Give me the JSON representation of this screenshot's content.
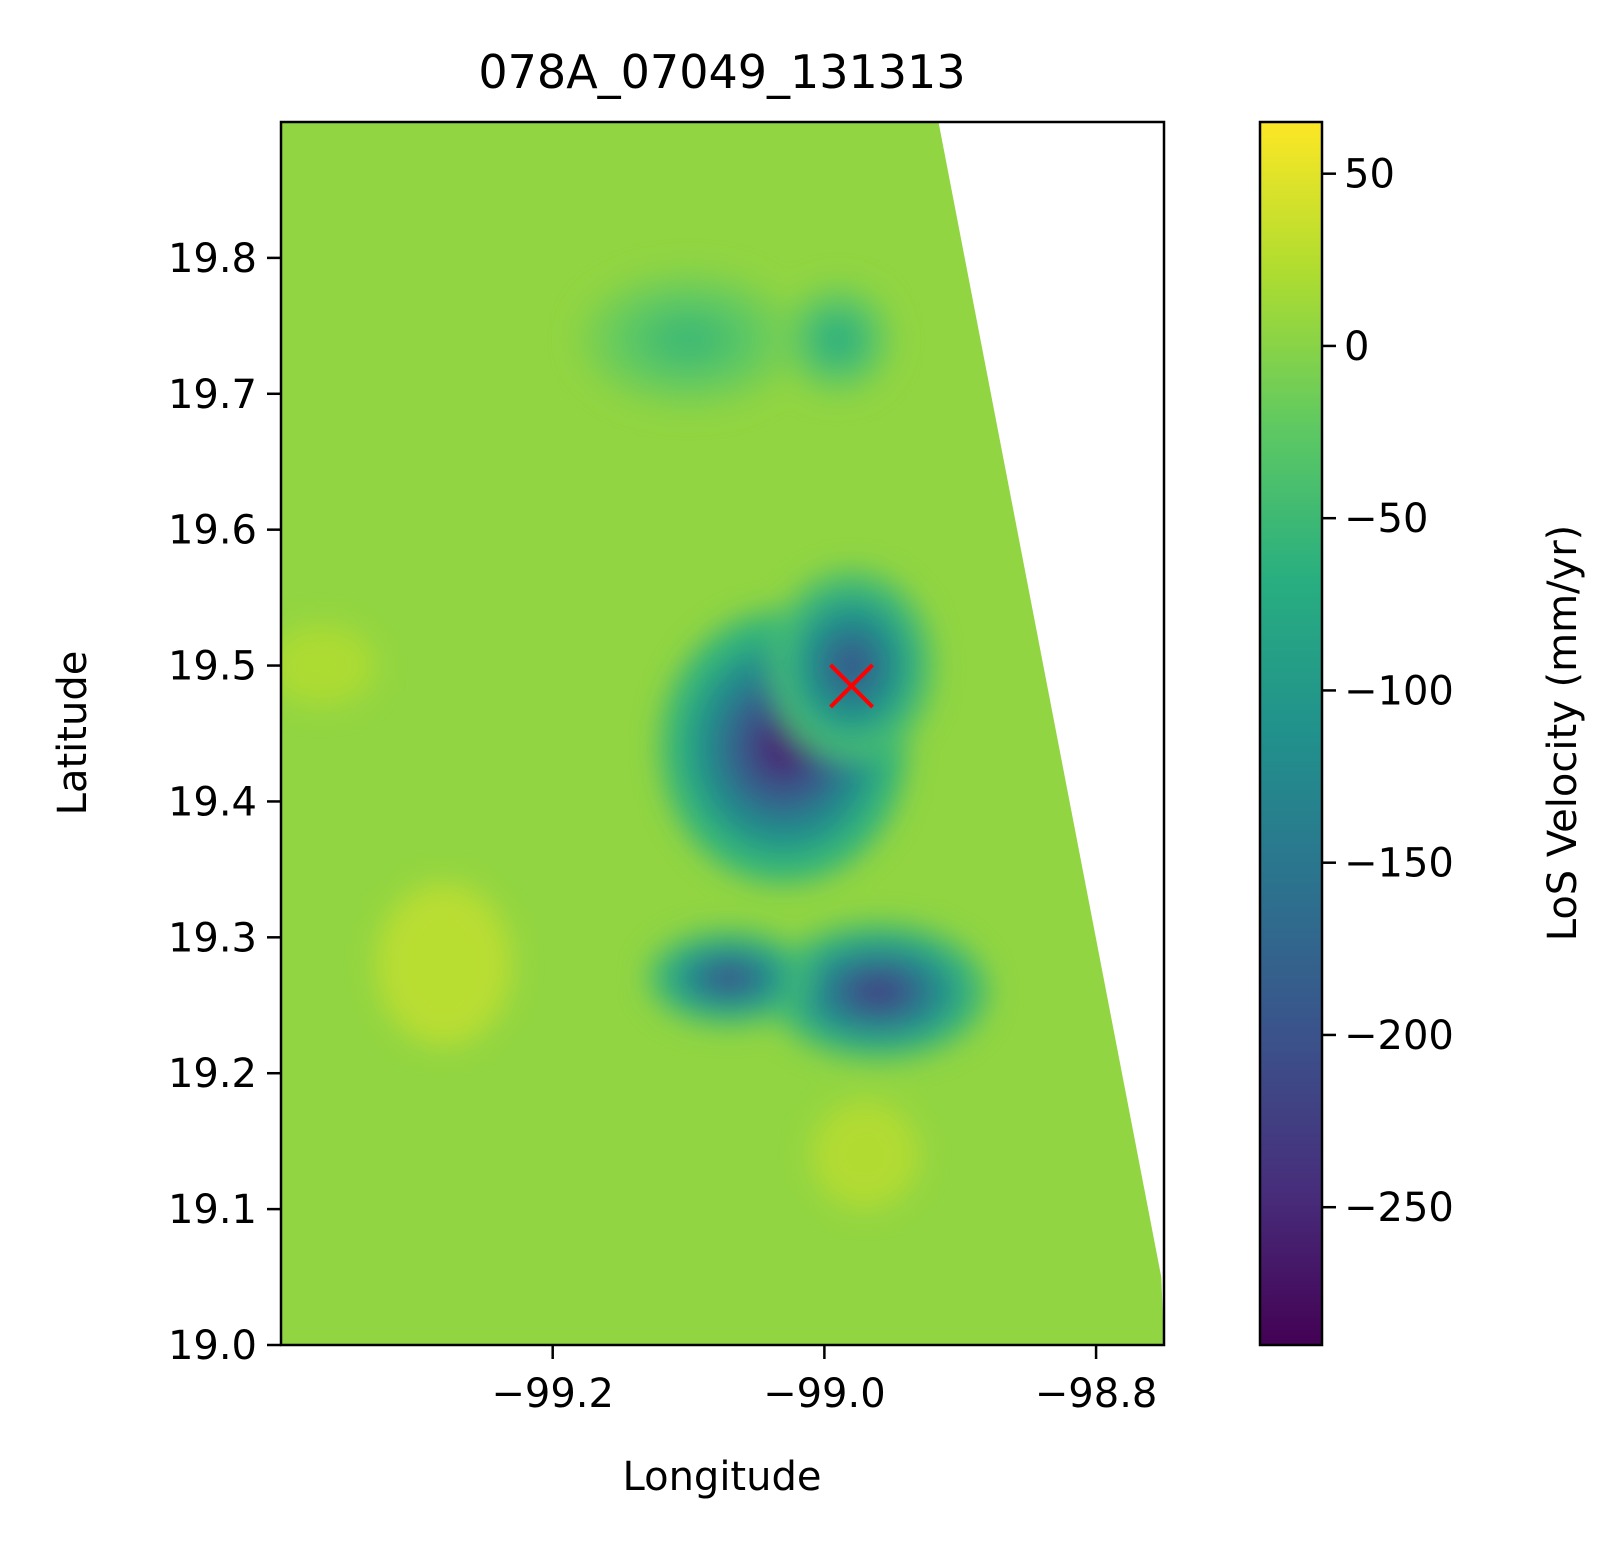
{
  "chart_data": {
    "type": "heatmap",
    "title": "078A_07049_131313",
    "xlabel": "Longitude",
    "ylabel": "Latitude",
    "xlim": [
      -99.4,
      -98.75
    ],
    "ylim": [
      19.0,
      19.9
    ],
    "xticks": [
      -99.2,
      -99.0,
      -98.8
    ],
    "xtick_labels": [
      "−99.2",
      "−99.0",
      "−98.8"
    ],
    "yticks": [
      19.0,
      19.1,
      19.2,
      19.3,
      19.4,
      19.5,
      19.6,
      19.7,
      19.8
    ],
    "ytick_labels": [
      "19.0",
      "19.1",
      "19.2",
      "19.3",
      "19.4",
      "19.5",
      "19.6",
      "19.7",
      "19.8"
    ],
    "colorbar": {
      "label": "LoS Velocity (mm/yr)",
      "colormap": "viridis",
      "range": [
        -290,
        65
      ],
      "ticks": [
        50,
        0,
        -50,
        -100,
        -150,
        -200,
        -250
      ],
      "tick_labels": [
        "50",
        "0",
        "−50",
        "−100",
        "−150",
        "−200",
        "−250"
      ]
    },
    "background_value": 5,
    "swath_east_edge": [
      [
        -98.916,
        19.9
      ],
      [
        -98.752,
        19.05
      ]
    ],
    "subsidence_zones": [
      {
        "center": [
          -99.03,
          19.44
        ],
        "radius": [
          0.09,
          0.1
        ],
        "min_value": -250
      },
      {
        "center": [
          -98.98,
          19.5
        ],
        "radius": [
          0.06,
          0.07
        ],
        "min_value": -190
      },
      {
        "center": [
          -98.96,
          19.26
        ],
        "radius": [
          0.08,
          0.05
        ],
        "min_value": -220
      },
      {
        "center": [
          -99.07,
          19.27
        ],
        "radius": [
          0.06,
          0.035
        ],
        "min_value": -200
      },
      {
        "center": [
          -99.1,
          19.74
        ],
        "radius": [
          0.08,
          0.05
        ],
        "min_value": -50
      },
      {
        "center": [
          -98.99,
          19.74
        ],
        "radius": [
          0.04,
          0.04
        ],
        "min_value": -70
      }
    ],
    "uplift_zones": [
      {
        "center": [
          -99.28,
          19.28
        ],
        "radius": [
          0.05,
          0.06
        ],
        "max_value": 35
      },
      {
        "center": [
          -99.37,
          19.5
        ],
        "radius": [
          0.04,
          0.03
        ],
        "max_value": 25
      },
      {
        "center": [
          -98.97,
          19.14
        ],
        "radius": [
          0.04,
          0.04
        ],
        "max_value": 30
      }
    ],
    "markers": [
      {
        "symbol": "x",
        "color": "#ff0000",
        "lon": -98.98,
        "lat": 19.485
      }
    ]
  }
}
